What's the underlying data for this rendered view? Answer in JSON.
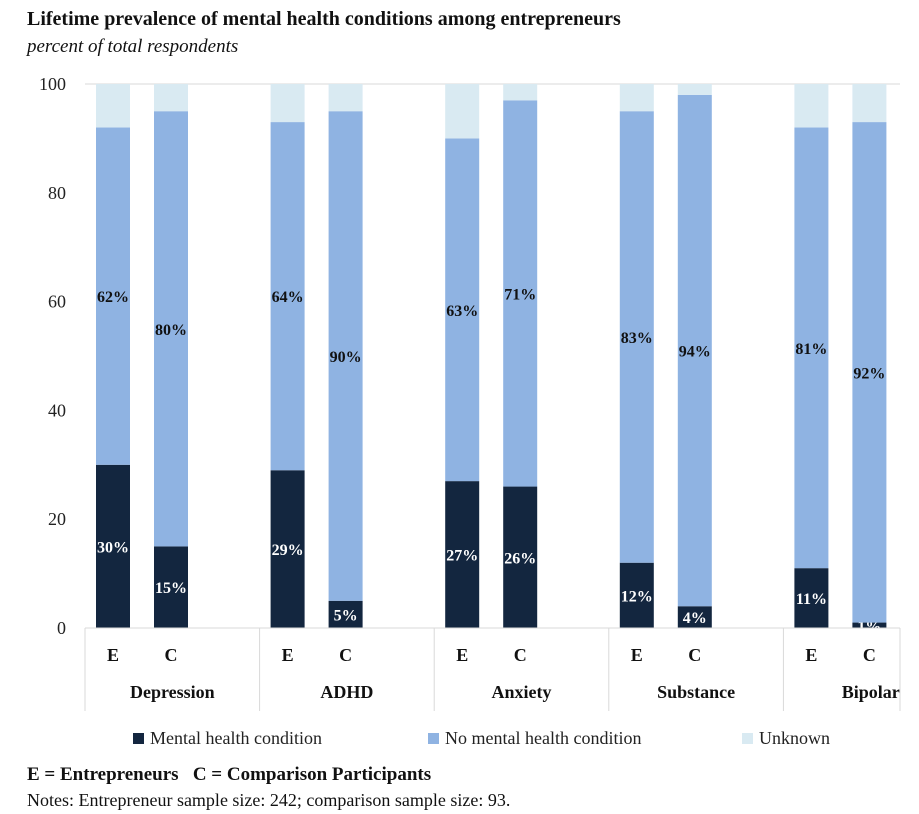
{
  "chart_data": {
    "type": "bar",
    "stacked": true,
    "title": "Lifetime prevalence of mental health conditions among entrepreneurs",
    "subtitle": "percent of total respondents",
    "ylim": [
      0,
      100
    ],
    "yticks": [
      0,
      20,
      40,
      60,
      80,
      100
    ],
    "groups": [
      "Depression",
      "ADHD",
      "Anxiety",
      "Substance",
      "Bipolar"
    ],
    "subcategories": [
      "E",
      "C"
    ],
    "series": [
      {
        "name": "Mental health condition",
        "color": "#13263f",
        "values": [
          [
            30,
            15
          ],
          [
            29,
            5
          ],
          [
            27,
            26
          ],
          [
            12,
            4
          ],
          [
            11,
            1
          ]
        ],
        "labels": [
          [
            "30%",
            "15%"
          ],
          [
            "29%",
            "5%"
          ],
          [
            "27%",
            "26%"
          ],
          [
            "12%",
            "4%"
          ],
          [
            "11%",
            "1%"
          ]
        ]
      },
      {
        "name": "No mental health condition",
        "color": "#8fb3e2",
        "values": [
          [
            62,
            80
          ],
          [
            64,
            90
          ],
          [
            63,
            71
          ],
          [
            83,
            94
          ],
          [
            81,
            92
          ]
        ],
        "labels": [
          [
            "62%",
            "80%"
          ],
          [
            "64%",
            "90%"
          ],
          [
            "63%",
            "71%"
          ],
          [
            "83%",
            "94%"
          ],
          [
            "81%",
            "92%"
          ]
        ]
      },
      {
        "name": "Unknown",
        "color": "#d9eaf2",
        "values": [
          [
            8,
            5
          ],
          [
            7,
            5
          ],
          [
            10,
            3
          ],
          [
            5,
            2
          ],
          [
            8,
            7
          ]
        ]
      }
    ],
    "legend_position": "bottom"
  },
  "key": "E = Entrepreneurs   C = Comparison Participants",
  "notes": "Notes: Entrepreneur sample size: 242; comparison sample size: 93."
}
